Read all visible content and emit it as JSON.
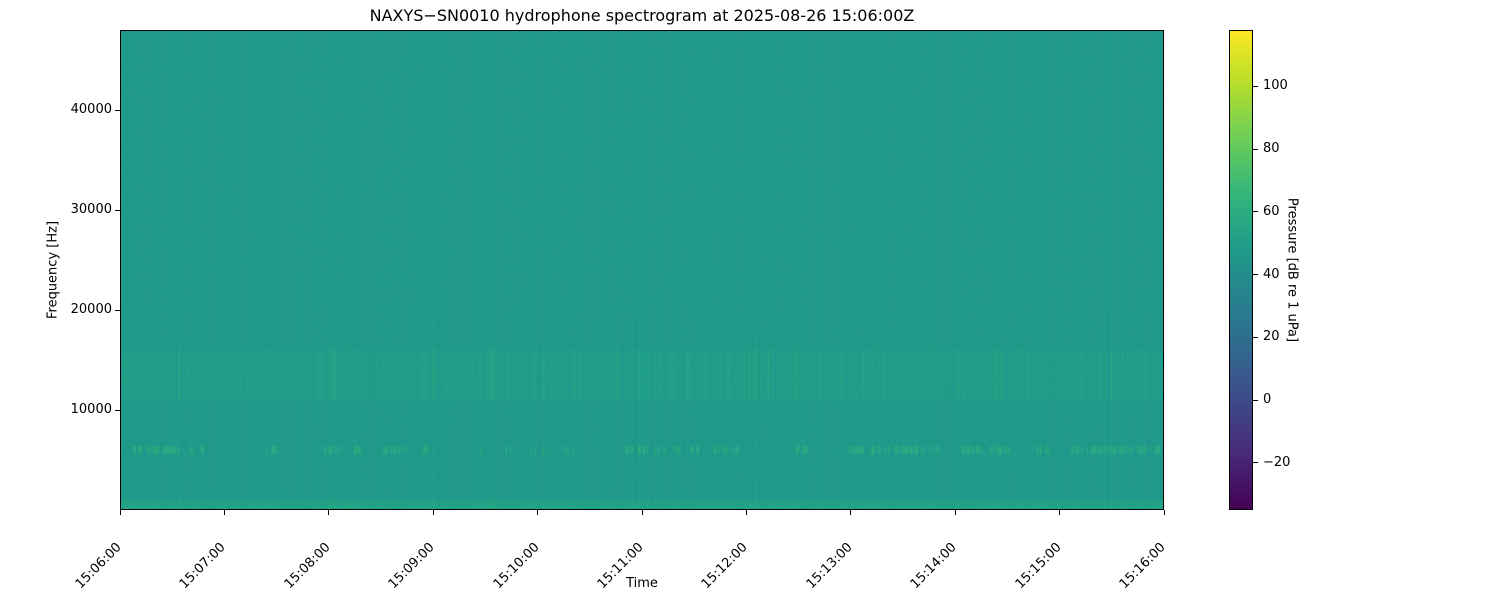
{
  "chart_data": {
    "type": "heatmap",
    "title": "NAXYS-SN0010 hydrophone spectrogram at 2025-08-26 15:06:00Z",
    "xlabel": "Time",
    "ylabel": "Frequency [Hz]",
    "colorbar_label": "Pressure [dB re 1 uPa]",
    "colormap": "viridis",
    "x_ticks": [
      "15:06:00",
      "15:07:00",
      "15:08:00",
      "15:09:00",
      "15:10:00",
      "15:11:00",
      "15:12:00",
      "15:13:00",
      "15:14:00",
      "15:15:00",
      "15:16:00"
    ],
    "xlim": [
      "15:06:00",
      "15:16:00"
    ],
    "y_ticks": [
      10000,
      20000,
      30000,
      40000
    ],
    "ylim": [
      0,
      48000
    ],
    "colorbar_ticks": [
      -20,
      0,
      20,
      40,
      60,
      80,
      100
    ],
    "clim": [
      -35,
      118
    ],
    "background_level_db": 47,
    "features": [
      {
        "frequency_hz": 6000,
        "level_db": 62
      },
      {
        "frequency_hz_range": [
          11000,
          16000
        ],
        "level_db": 52
      },
      {
        "frequency_hz_range": [
          0,
          1000
        ],
        "level_db": 55
      }
    ],
    "grid": false
  }
}
